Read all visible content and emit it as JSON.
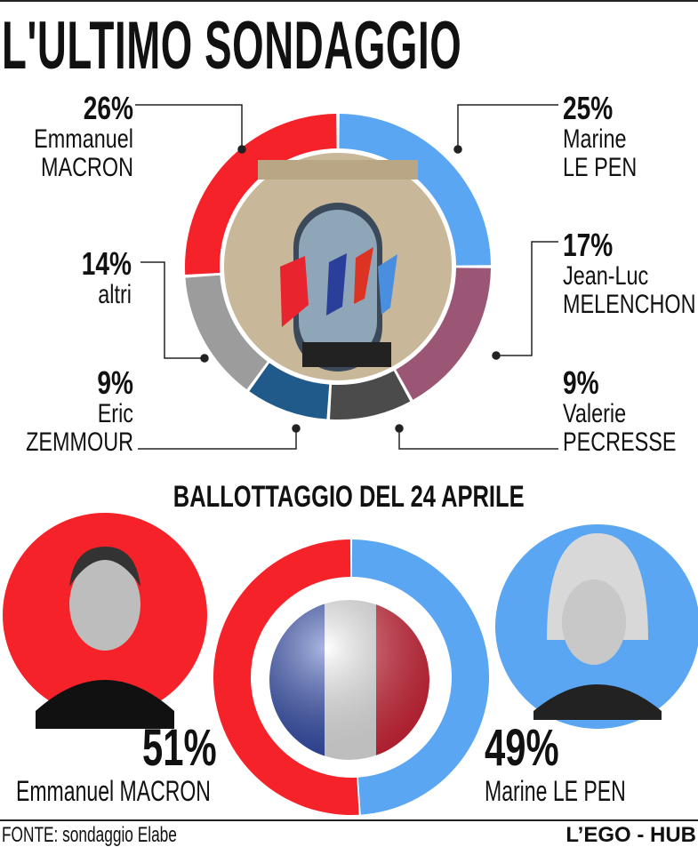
{
  "title": "L'ULTIMO SONDAGGIO",
  "subtitle": "BALLOTTAGGIO DEL 24 APRILE",
  "chart_data": [
    {
      "type": "pie",
      "title": "L'ULTIMO SONDAGGIO",
      "style": "donut",
      "start": "top",
      "direction": "clockwise",
      "slices": [
        {
          "name_line1": "Marine",
          "name_line2": "LE PEN",
          "pct_label": "25%",
          "value": 25,
          "color": "#5aa6f2"
        },
        {
          "name_line1": "Jean-Luc",
          "name_line2": "MELENCHON",
          "pct_label": "17%",
          "value": 17,
          "color": "#9b5575"
        },
        {
          "name_line1": "Valerie",
          "name_line2": "PECRESSE",
          "pct_label": "9%",
          "value": 9,
          "color": "#4b4b4b"
        },
        {
          "name_line1": "Eric",
          "name_line2": "ZEMMOUR",
          "pct_label": "9%",
          "value": 9,
          "color": "#1f5a8a"
        },
        {
          "name_line1": "altri",
          "name_line2": "",
          "pct_label": "14%",
          "value": 14,
          "color": "#9c9c9c"
        },
        {
          "name_line1": "Emmanuel",
          "name_line2": "MACRON",
          "pct_label": "26%",
          "value": 26,
          "color": "#f5222a"
        }
      ]
    },
    {
      "type": "pie",
      "title": "BALLOTTAGGIO DEL 24 APRILE",
      "style": "donut",
      "start": "top",
      "slices": [
        {
          "name": "Marine LE PEN",
          "pct_label": "49%",
          "value": 49,
          "color": "#5aa6f2"
        },
        {
          "name": "Emmanuel MACRON",
          "pct_label": "51%",
          "value": 51,
          "color": "#f5222a"
        }
      ]
    }
  ],
  "footer": {
    "source": "FONTE: sondaggio Elabe",
    "brand": "L’EGO - HUB"
  }
}
